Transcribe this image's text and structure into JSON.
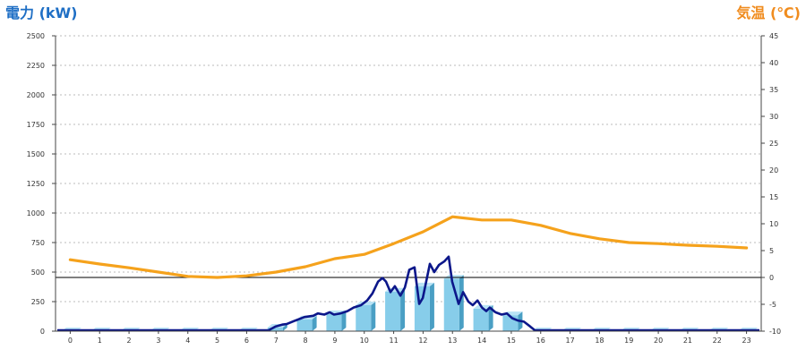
{
  "colors": {
    "left_title": "#1f6fc5",
    "right_title": "#f08c1e",
    "bar_front": "#87cdea",
    "bar_side": "#4a9fc4",
    "bar_top": "#b9e3f5",
    "power_line": "#0c178a",
    "temperature_line": "#f5a21c",
    "reference_line": "#000000",
    "grid": "#bbbbbb",
    "axis": "#444444"
  },
  "chart_data": {
    "type": "bar",
    "categories": [
      "0",
      "1",
      "2",
      "3",
      "4",
      "5",
      "6",
      "7",
      "8",
      "9",
      "10",
      "11",
      "12",
      "13",
      "14",
      "15",
      "16",
      "17",
      "18",
      "19",
      "20",
      "21",
      "22",
      "23"
    ],
    "left_axis": {
      "label": "電力 (kW)",
      "ylim": [
        0,
        2500
      ],
      "ticks": [
        0,
        250,
        500,
        750,
        1000,
        1250,
        1500,
        1750,
        2000,
        2250,
        2500
      ]
    },
    "right_axis": {
      "label": "気温 (℃)",
      "ylim": [
        -10,
        45
      ],
      "ticks": [
        -10,
        -5,
        0,
        5,
        10,
        15,
        20,
        25,
        30,
        35,
        40,
        45
      ]
    },
    "grid": "dotted horizontal at left-axis ticks",
    "reference_line": {
      "axis": "right",
      "value": 0
    },
    "series": [
      {
        "type": "bar",
        "axis": "left",
        "style": "3d",
        "values": [
          0,
          0,
          0,
          0,
          0,
          0,
          0,
          30,
          100,
          145,
          220,
          335,
          380,
          445,
          190,
          135,
          0,
          0,
          0,
          0,
          0,
          0,
          0,
          0
        ]
      },
      {
        "type": "line",
        "axis": "left",
        "x_unit": "hour",
        "points": [
          [
            0,
            0
          ],
          [
            7.25,
            0
          ],
          [
            7.49,
            40
          ],
          [
            7.71,
            55
          ],
          [
            7.86,
            60
          ],
          [
            8.16,
            90
          ],
          [
            8.47,
            120
          ],
          [
            8.77,
            130
          ],
          [
            8.92,
            150
          ],
          [
            9.14,
            140
          ],
          [
            9.32,
            160
          ],
          [
            9.47,
            140
          ],
          [
            9.69,
            150
          ],
          [
            9.93,
            170
          ],
          [
            10.14,
            200
          ],
          [
            10.39,
            220
          ],
          [
            10.6,
            260
          ],
          [
            10.78,
            320
          ],
          [
            10.97,
            420
          ],
          [
            11.12,
            450
          ],
          [
            11.24,
            420
          ],
          [
            11.39,
            330
          ],
          [
            11.54,
            380
          ],
          [
            11.73,
            300
          ],
          [
            11.88,
            370
          ],
          [
            12.03,
            520
          ],
          [
            12.21,
            540
          ],
          [
            12.37,
            230
          ],
          [
            12.49,
            280
          ],
          [
            12.64,
            460
          ],
          [
            12.73,
            570
          ],
          [
            12.88,
            500
          ],
          [
            13.04,
            560
          ],
          [
            13.22,
            590
          ],
          [
            13.37,
            630
          ],
          [
            13.49,
            420
          ],
          [
            13.71,
            230
          ],
          [
            13.86,
            330
          ],
          [
            14.04,
            250
          ],
          [
            14.19,
            220
          ],
          [
            14.35,
            260
          ],
          [
            14.5,
            200
          ],
          [
            14.65,
            170
          ],
          [
            14.77,
            200
          ],
          [
            14.96,
            160
          ],
          [
            15.17,
            140
          ],
          [
            15.35,
            150
          ],
          [
            15.53,
            110
          ],
          [
            15.72,
            90
          ],
          [
            15.93,
            80
          ],
          [
            16.14,
            40
          ],
          [
            16.3,
            0
          ],
          [
            24,
            0
          ]
        ]
      },
      {
        "type": "line",
        "axis": "right",
        "values": [
          3.3,
          2.5,
          1.8,
          1.0,
          0.2,
          0.0,
          0.3,
          1.0,
          2.0,
          3.5,
          4.3,
          6.3,
          8.5,
          11.3,
          10.7,
          10.7,
          9.7,
          8.2,
          7.2,
          6.5,
          6.3,
          6.0,
          5.8,
          5.5
        ]
      }
    ]
  }
}
